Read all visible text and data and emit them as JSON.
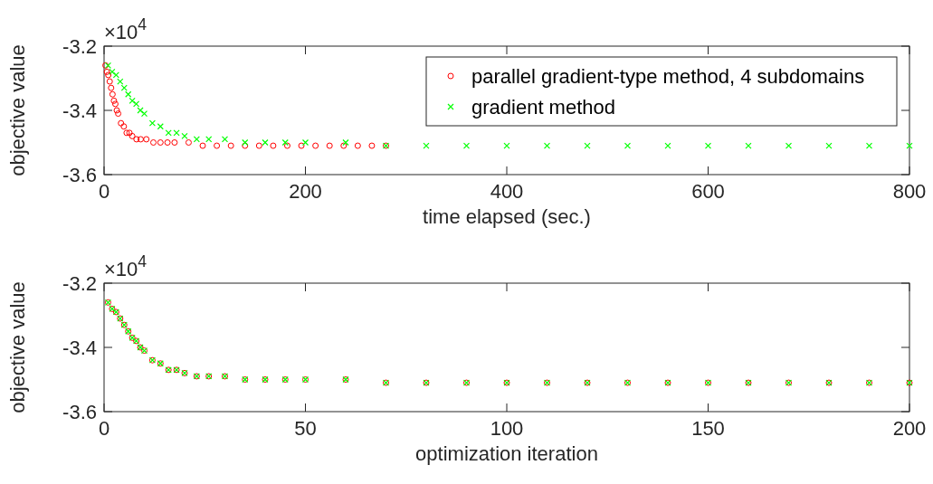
{
  "chart_data": [
    {
      "type": "scatter",
      "xlabel": "time elapsed (sec.)",
      "ylabel": "objective value",
      "annotations": [
        "×10$^{4}$"
      ],
      "xlim": [
        0,
        800
      ],
      "xticks": [
        0,
        200,
        400,
        600,
        800
      ],
      "ylim": [
        -3.6,
        -3.2
      ],
      "yticks": [
        -3.6,
        -3.4,
        -3.2
      ],
      "grid": false,
      "legend": "top right",
      "series": [
        {
          "name": "parallel gradient-type method, 4 subdomains",
          "color": "#ff0000",
          "marker": "circle",
          "x": [
            1.4,
            2.8,
            4.2,
            5.6,
            7,
            8.4,
            9.8,
            11.2,
            12.6,
            14,
            16.8,
            19.6,
            22.4,
            25.2,
            28,
            32.2,
            36.4,
            42,
            49,
            56,
            63,
            70,
            84,
            98,
            112,
            126,
            140,
            154,
            168,
            182,
            196,
            210,
            224,
            238,
            252,
            266,
            280
          ],
          "values": [
            -3.26,
            -3.28,
            -3.29,
            -3.31,
            -3.33,
            -3.35,
            -3.37,
            -3.38,
            -3.4,
            -3.41,
            -3.44,
            -3.45,
            -3.47,
            -3.47,
            -3.48,
            -3.49,
            -3.49,
            -3.49,
            -3.5,
            -3.5,
            -3.5,
            -3.5,
            -3.5,
            -3.51,
            -3.51,
            -3.51,
            -3.51,
            -3.51,
            -3.51,
            -3.51,
            -3.51,
            -3.51,
            -3.51,
            -3.51,
            -3.51,
            -3.51,
            -3.51
          ]
        },
        {
          "name": "gradient method",
          "color": "#00ff00",
          "marker": "cross",
          "x": [
            4,
            8,
            12,
            16,
            20,
            24,
            28,
            32,
            36,
            40,
            48,
            56,
            64,
            72,
            80,
            92,
            104,
            120,
            140,
            160,
            180,
            200,
            240,
            280,
            320,
            360,
            400,
            440,
            480,
            520,
            560,
            600,
            640,
            680,
            720,
            760,
            800
          ],
          "values": [
            -3.26,
            -3.28,
            -3.29,
            -3.31,
            -3.33,
            -3.35,
            -3.37,
            -3.38,
            -3.4,
            -3.41,
            -3.44,
            -3.45,
            -3.47,
            -3.47,
            -3.48,
            -3.49,
            -3.49,
            -3.49,
            -3.5,
            -3.5,
            -3.5,
            -3.5,
            -3.5,
            -3.51,
            -3.51,
            -3.51,
            -3.51,
            -3.51,
            -3.51,
            -3.51,
            -3.51,
            -3.51,
            -3.51,
            -3.51,
            -3.51,
            -3.51,
            -3.51
          ]
        }
      ]
    },
    {
      "type": "scatter",
      "xlabel": "optimization iteration",
      "ylabel": "objective value",
      "annotations": [
        "×10$^{4}$"
      ],
      "xlim": [
        0,
        200
      ],
      "xticks": [
        0,
        50,
        100,
        150,
        200
      ],
      "ylim": [
        -3.6,
        -3.2
      ],
      "yticks": [
        -3.6,
        -3.4,
        -3.2
      ],
      "grid": false,
      "series": [
        {
          "color": "#ff0000",
          "marker": "circle",
          "x": [
            1,
            2,
            3,
            4,
            5,
            6,
            7,
            8,
            9,
            10,
            12,
            14,
            16,
            18,
            20,
            23,
            26,
            30,
            35,
            40,
            45,
            50,
            60,
            70,
            80,
            90,
            100,
            110,
            120,
            130,
            140,
            150,
            160,
            170,
            180,
            190,
            200
          ],
          "values": [
            -3.26,
            -3.28,
            -3.29,
            -3.31,
            -3.33,
            -3.35,
            -3.37,
            -3.38,
            -3.4,
            -3.41,
            -3.44,
            -3.45,
            -3.47,
            -3.47,
            -3.48,
            -3.49,
            -3.49,
            -3.49,
            -3.5,
            -3.5,
            -3.5,
            -3.5,
            -3.5,
            -3.51,
            -3.51,
            -3.51,
            -3.51,
            -3.51,
            -3.51,
            -3.51,
            -3.51,
            -3.51,
            -3.51,
            -3.51,
            -3.51,
            -3.51,
            -3.51
          ]
        },
        {
          "color": "#00ff00",
          "marker": "cross",
          "x": [
            1,
            2,
            3,
            4,
            5,
            6,
            7,
            8,
            9,
            10,
            12,
            14,
            16,
            18,
            20,
            23,
            26,
            30,
            35,
            40,
            45,
            50,
            60,
            70,
            80,
            90,
            100,
            110,
            120,
            130,
            140,
            150,
            160,
            170,
            180,
            190,
            200
          ],
          "values": [
            -3.26,
            -3.28,
            -3.29,
            -3.31,
            -3.33,
            -3.35,
            -3.37,
            -3.38,
            -3.4,
            -3.41,
            -3.44,
            -3.45,
            -3.47,
            -3.47,
            -3.48,
            -3.49,
            -3.49,
            -3.49,
            -3.5,
            -3.5,
            -3.5,
            -3.5,
            -3.5,
            -3.51,
            -3.51,
            -3.51,
            -3.51,
            -3.51,
            -3.51,
            -3.51,
            -3.51,
            -3.51,
            -3.51,
            -3.51,
            -3.51,
            -3.51,
            -3.51
          ]
        }
      ]
    }
  ]
}
